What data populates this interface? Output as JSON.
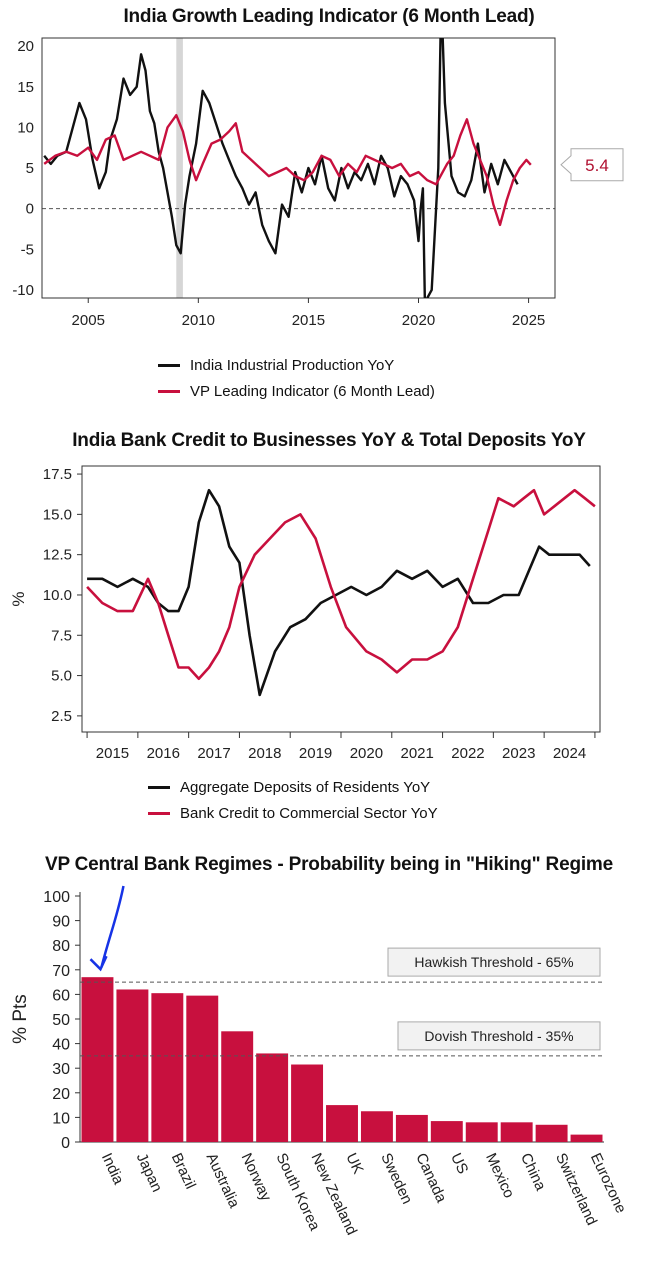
{
  "colors": {
    "black": "#111111",
    "red": "#c8103e",
    "bar": "#c8103e",
    "shade": "#d6d6d6",
    "arrow": "#1633e6"
  },
  "chart_data": [
    {
      "type": "line",
      "title": "India Growth Leading Indicator (6 Month Lead)",
      "ylim": [
        -11,
        21
      ],
      "yticks": [
        "20",
        "15",
        "10",
        "5",
        "0",
        "-5",
        "-10"
      ],
      "xlim": [
        2002.9,
        2026.2
      ],
      "xticks": [
        "2005",
        "2010",
        "2015",
        "2020",
        "2025"
      ],
      "recession_shade": [
        2009.0,
        2009.3
      ],
      "value_label": "5.4",
      "legend": [
        "India Industrial Production YoY",
        "VP Leading Indicator (6 Month Lead)"
      ],
      "series": [
        {
          "name": "India Industrial Production YoY",
          "color": "black",
          "x": [
            2003.0,
            2003.3,
            2003.6,
            2004.0,
            2004.3,
            2004.6,
            2004.9,
            2005.2,
            2005.5,
            2005.8,
            2006.0,
            2006.3,
            2006.6,
            2006.9,
            2007.2,
            2007.4,
            2007.6,
            2007.8,
            2008.0,
            2008.2,
            2008.4,
            2008.6,
            2008.8,
            2009.0,
            2009.2,
            2009.4,
            2009.6,
            2009.9,
            2010.2,
            2010.5,
            2010.8,
            2011.1,
            2011.4,
            2011.7,
            2012.0,
            2012.3,
            2012.6,
            2012.9,
            2013.2,
            2013.5,
            2013.8,
            2014.1,
            2014.4,
            2014.7,
            2015.0,
            2015.3,
            2015.6,
            2015.9,
            2016.2,
            2016.5,
            2016.8,
            2017.1,
            2017.4,
            2017.7,
            2018.0,
            2018.3,
            2018.6,
            2018.9,
            2019.2,
            2019.5,
            2019.8,
            2020.0,
            2020.1,
            2020.2,
            2020.3,
            2020.4,
            2020.6,
            2020.9,
            2021.0,
            2021.1,
            2021.2,
            2021.3,
            2021.5,
            2021.8,
            2022.1,
            2022.4,
            2022.7,
            2023.0,
            2023.3,
            2023.6,
            2023.9,
            2024.2,
            2024.5
          ],
          "y": [
            6.5,
            5.5,
            6.5,
            7.0,
            10.0,
            13.0,
            11.0,
            6.0,
            2.5,
            4.5,
            8.5,
            11.0,
            16.0,
            14.0,
            15.0,
            19.0,
            17.0,
            12.0,
            10.5,
            7.0,
            5.0,
            2.0,
            -1.0,
            -4.5,
            -5.5,
            0.5,
            4.0,
            8.0,
            14.5,
            13.0,
            10.5,
            8.0,
            6.0,
            4.0,
            2.5,
            0.5,
            2.0,
            -2.0,
            -4.0,
            -5.5,
            0.5,
            -1.0,
            4.5,
            2.0,
            5.0,
            3.0,
            6.5,
            2.5,
            1.0,
            5.0,
            2.5,
            4.5,
            3.5,
            5.5,
            3.0,
            6.5,
            5.0,
            1.5,
            4.0,
            3.0,
            1.0,
            -4.0,
            0.0,
            2.5,
            -13.0,
            -11.0,
            -10.0,
            5.0,
            21.0,
            21.0,
            13.0,
            10.0,
            4.0,
            2.0,
            1.5,
            3.5,
            8.0,
            2.0,
            5.5,
            3.0,
            6.0,
            4.5,
            3.0
          ]
        },
        {
          "name": "VP Leading Indicator (6 Month Lead)",
          "color": "red",
          "x": [
            2003.0,
            2003.5,
            2004.0,
            2004.5,
            2005.0,
            2005.4,
            2005.8,
            2006.2,
            2006.6,
            2007.0,
            2007.4,
            2007.8,
            2008.2,
            2008.6,
            2009.0,
            2009.3,
            2009.6,
            2009.9,
            2010.2,
            2010.6,
            2011.0,
            2011.4,
            2011.7,
            2012.0,
            2012.4,
            2012.8,
            2013.2,
            2013.6,
            2014.0,
            2014.4,
            2014.8,
            2015.2,
            2015.6,
            2016.0,
            2016.4,
            2016.8,
            2017.2,
            2017.6,
            2018.0,
            2018.4,
            2018.8,
            2019.2,
            2019.6,
            2020.0,
            2020.4,
            2020.8,
            2021.0,
            2021.3,
            2021.6,
            2021.9,
            2022.2,
            2022.5,
            2022.8,
            2023.1,
            2023.4,
            2023.7,
            2024.0,
            2024.3,
            2024.6,
            2024.9,
            2025.1
          ],
          "y": [
            5.5,
            6.5,
            7.0,
            6.5,
            7.5,
            6.0,
            8.5,
            9.0,
            6.0,
            6.5,
            7.0,
            6.5,
            6.0,
            10.0,
            11.5,
            9.5,
            6.0,
            3.5,
            5.5,
            8.0,
            8.5,
            9.5,
            10.5,
            7.0,
            6.0,
            5.0,
            4.0,
            4.5,
            5.0,
            4.0,
            3.5,
            4.5,
            6.5,
            6.0,
            4.0,
            5.5,
            4.5,
            6.5,
            6.0,
            5.5,
            5.0,
            5.5,
            4.0,
            4.5,
            3.5,
            3.0,
            4.0,
            5.5,
            6.5,
            9.0,
            11.0,
            8.0,
            6.0,
            4.0,
            0.5,
            -2.0,
            1.0,
            3.5,
            5.0,
            6.0,
            5.4
          ]
        }
      ]
    },
    {
      "type": "line",
      "title": "India Bank Credit to Businesses YoY & Total Deposits YoY",
      "ylabel": "%",
      "ylim": [
        1.5,
        18.0
      ],
      "yticks": [
        "17.5",
        "15.0",
        "12.5",
        "10.0",
        "7.5",
        "5.0",
        "2.5"
      ],
      "xlim": [
        2014.4,
        2024.6
      ],
      "xticks": [
        "2015",
        "2016",
        "2017",
        "2018",
        "2019",
        "2020",
        "2021",
        "2022",
        "2023",
        "2024"
      ],
      "legend": [
        "Aggregate Deposits of Residents YoY",
        "Bank Credit to Commercial Sector YoY"
      ],
      "series": [
        {
          "name": "Aggregate Deposits of Residents YoY",
          "color": "black",
          "x": [
            2014.5,
            2014.8,
            2015.1,
            2015.4,
            2015.7,
            2015.9,
            2016.1,
            2016.3,
            2016.5,
            2016.7,
            2016.9,
            2017.1,
            2017.3,
            2017.5,
            2017.7,
            2017.9,
            2018.2,
            2018.5,
            2018.8,
            2019.1,
            2019.4,
            2019.7,
            2020.0,
            2020.3,
            2020.6,
            2020.9,
            2021.2,
            2021.5,
            2021.8,
            2022.1,
            2022.4,
            2022.7,
            2023.0,
            2023.2,
            2023.4,
            2023.6,
            2023.9,
            2024.2,
            2024.4
          ],
          "y": [
            11.0,
            11.0,
            10.5,
            11.0,
            10.5,
            9.5,
            9.0,
            9.0,
            10.5,
            14.5,
            16.5,
            15.5,
            13.0,
            12.0,
            7.5,
            3.8,
            6.5,
            8.0,
            8.5,
            9.5,
            10.0,
            10.5,
            10.0,
            10.5,
            11.5,
            11.0,
            11.5,
            10.5,
            11.0,
            9.5,
            9.5,
            10.0,
            10.0,
            11.5,
            13.0,
            12.5,
            12.5,
            12.5,
            11.8
          ]
        },
        {
          "name": "Bank Credit to Commercial Sector YoY",
          "color": "red",
          "x": [
            2014.5,
            2014.8,
            2015.1,
            2015.4,
            2015.7,
            2015.9,
            2016.1,
            2016.3,
            2016.5,
            2016.7,
            2016.9,
            2017.1,
            2017.3,
            2017.5,
            2017.8,
            2018.1,
            2018.4,
            2018.7,
            2019.0,
            2019.3,
            2019.6,
            2020.0,
            2020.3,
            2020.6,
            2020.9,
            2021.2,
            2021.5,
            2021.8,
            2022.1,
            2022.4,
            2022.6,
            2022.9,
            2023.1,
            2023.3,
            2023.5,
            2023.7,
            2023.9,
            2024.1,
            2024.3,
            2024.5
          ],
          "y": [
            10.5,
            9.5,
            9.0,
            9.0,
            11.0,
            9.5,
            7.5,
            5.5,
            5.5,
            4.8,
            5.5,
            6.5,
            8.0,
            10.5,
            12.5,
            13.5,
            14.5,
            15.0,
            13.5,
            10.5,
            8.0,
            6.5,
            6.0,
            5.2,
            6.0,
            6.0,
            6.5,
            8.0,
            11.0,
            14.0,
            16.0,
            15.5,
            16.0,
            16.5,
            15.0,
            15.5,
            16.0,
            16.5,
            16.0,
            15.5
          ]
        }
      ]
    },
    {
      "type": "bar",
      "title": "VP Central Bank Regimes - Probability being in \"Hiking\" Regime",
      "ylabel": "% Pts",
      "ylim": [
        0,
        100
      ],
      "yticks": [
        "100",
        "90",
        "80",
        "70",
        "60",
        "50",
        "40",
        "30",
        "20",
        "10",
        "0"
      ],
      "categories": [
        "India",
        "Japan",
        "Brazil",
        "Australia",
        "Norway",
        "South Korea",
        "New Zealand",
        "UK",
        "Sweden",
        "Canada",
        "US",
        "Mexico",
        "China",
        "Switzerland",
        "Eurozone"
      ],
      "values": [
        67,
        62,
        60.5,
        59.5,
        45,
        36,
        31.5,
        15,
        12.5,
        11,
        8.5,
        8,
        8,
        7,
        3
      ],
      "thresholds": [
        {
          "value": 65,
          "label": "Hawkish Threshold - 65%"
        },
        {
          "value": 35,
          "label": "Dovish Threshold - 35%"
        }
      ]
    }
  ]
}
